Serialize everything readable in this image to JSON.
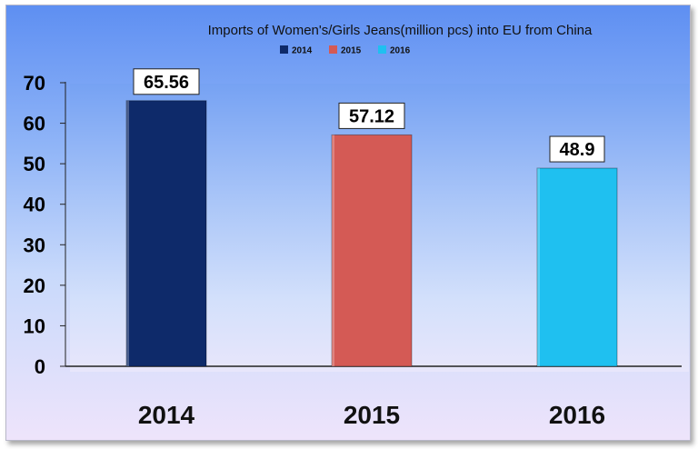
{
  "chart_data": {
    "type": "bar",
    "title": "Imports of Women's/Girls Jeans(million pcs) into EU from China",
    "categories": [
      "2014",
      "2015",
      "2016"
    ],
    "series": [
      {
        "name": "2014",
        "values": [
          65.56,
          null,
          null
        ],
        "color": "#0e2a6a"
      },
      {
        "name": "2015",
        "values": [
          null,
          57.12,
          null
        ],
        "color": "#d45a55"
      },
      {
        "name": "2016",
        "values": [
          null,
          null,
          48.9
        ],
        "color": "#1fc0f0"
      }
    ],
    "values": [
      65.56,
      57.12,
      48.9
    ],
    "data_labels": [
      "65.56",
      "57.12",
      "48.9"
    ],
    "colors": [
      "#0e2a6a",
      "#d45a55",
      "#1fc0f0"
    ],
    "yticks": [
      "0",
      "10",
      "20",
      "30",
      "40",
      "50",
      "60",
      "70"
    ],
    "ylim": [
      0,
      70
    ],
    "xlabel": "",
    "ylabel": "",
    "legend": {
      "position": "top",
      "entries": [
        "2014",
        "2015",
        "2016"
      ]
    },
    "grid": false
  }
}
